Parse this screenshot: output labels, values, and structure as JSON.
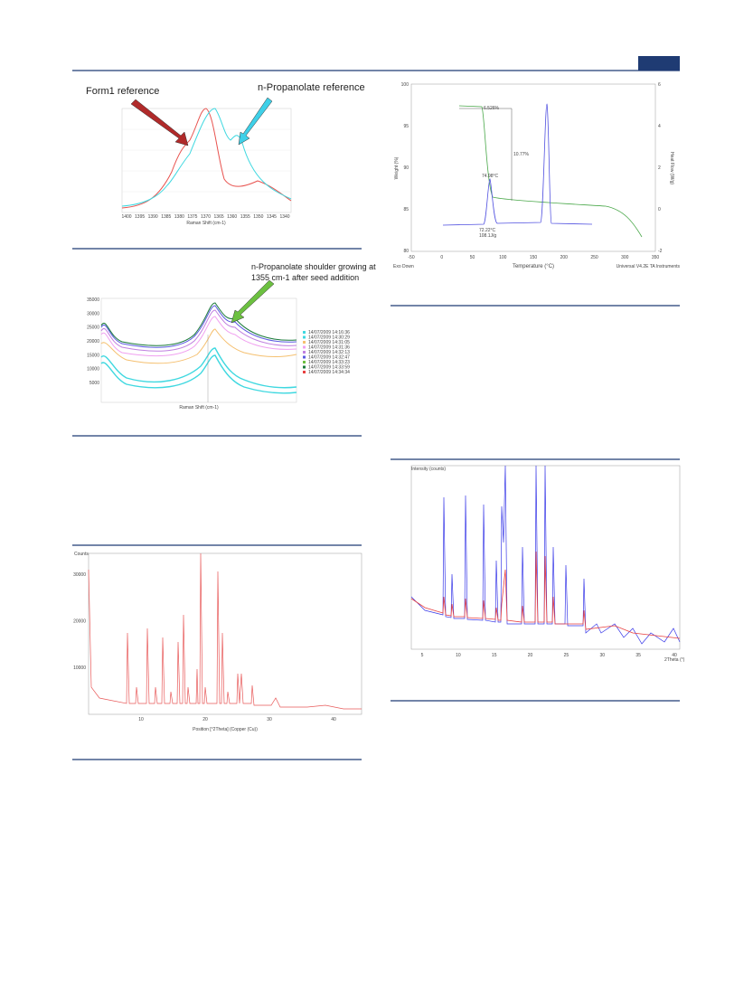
{
  "figures": [
    {
      "annotations": [
        "Form1 reference",
        "n-Propanolate reference"
      ],
      "x_axis_title": "Raman Shift (cm-1)",
      "x_ticks": [
        "1400",
        "1395",
        "1390",
        "1385",
        "1380",
        "1375",
        "1370",
        "1365",
        "1360",
        "1355",
        "1350",
        "1345",
        "1340"
      ]
    },
    {
      "annotation": [
        "n-Propanolate shoulder growing at",
        "1355 cm-1 after seed addition"
      ],
      "x_axis_title": "Raman Shift (cm-1)",
      "y_ticks": [
        "35000",
        "30000",
        "25000",
        "20000",
        "15000",
        "10000",
        "5000"
      ],
      "legend": [
        "14/07/2009 14:16:36",
        "14/07/2009 14:30:29",
        "14/07/2009 14:31:05",
        "14/07/2009 14:31:36",
        "14/07/2009 14:32:13",
        "14/07/2009 14:32:47",
        "14/07/2009 14:33:23",
        "14/07/2009 14:33:59",
        "14/07/2009 14:34:34"
      ]
    },
    {
      "y_axis_title": "Counts",
      "y_ticks": [
        "30000",
        "20000",
        "10000"
      ],
      "x_ticks": [
        "10",
        "20",
        "30",
        "40"
      ],
      "x_axis_title": "Position [°2Theta] (Copper (Cu))"
    },
    {
      "y_left_title": "Weight (%)",
      "y_right_title": "Heat Flow (W/g)",
      "y_left_ticks": [
        "100",
        "95",
        "90",
        "85",
        "80"
      ],
      "y_right_ticks": [
        "6",
        "4",
        "2",
        "0",
        "-2"
      ],
      "x_ticks": [
        "-50",
        "0",
        "50",
        "100",
        "150",
        "200",
        "250",
        "300",
        "350"
      ],
      "x_axis_title": "Temperature (°C)",
      "annotations": [
        "6.526%",
        "10.77%",
        "74.98°C",
        "72.22°C",
        "108.1J/g"
      ],
      "footer_left": "Exo Down",
      "footer_right": "Universal V4.2E TA Instruments"
    },
    {
      "y_axis_title": "Intensity (counts)",
      "x_ticks": [
        "5",
        "10",
        "15",
        "20",
        "25",
        "30",
        "35",
        "40"
      ],
      "x_axis_title": "2Theta (°)"
    }
  ]
}
